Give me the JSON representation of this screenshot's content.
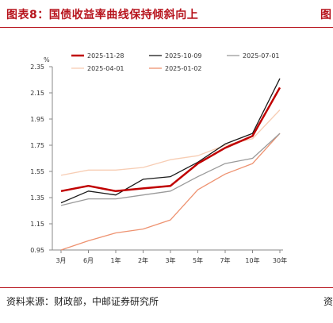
{
  "header": {
    "title": "图表8：国债收益率曲线保持倾斜向上",
    "next_title_fragment": "图"
  },
  "footer": {
    "source": "资料来源：财政部，中邮证券研究所",
    "next_source_fragment": "资"
  },
  "colors": {
    "accent": "#b7131c",
    "rule": "#b7131c"
  },
  "chart_data": {
    "type": "line",
    "y_unit": "%",
    "categories": [
      "3月",
      "6月",
      "1年",
      "2年",
      "3年",
      "5年",
      "7年",
      "10年",
      "30年"
    ],
    "ylim": [
      0.95,
      2.35
    ],
    "yticks": [
      "0.95",
      "1.15",
      "1.35",
      "1.55",
      "1.75",
      "1.95",
      "2.15",
      "2.35"
    ],
    "grid": false,
    "legend_position": "top",
    "series": [
      {
        "name": "2025-11-28",
        "color": "#c00000",
        "width": 2.5,
        "values": [
          1.4,
          1.44,
          1.4,
          1.42,
          1.44,
          1.61,
          1.73,
          1.82,
          2.19
        ]
      },
      {
        "name": "2025-10-09",
        "color": "#1a1a1a",
        "width": 1.3,
        "values": [
          1.31,
          1.4,
          1.37,
          1.49,
          1.51,
          1.62,
          1.76,
          1.84,
          2.26
        ]
      },
      {
        "name": "2025-07-01",
        "color": "#9a9a9a",
        "width": 1.3,
        "values": [
          1.29,
          1.34,
          1.34,
          1.37,
          1.4,
          1.51,
          1.61,
          1.65,
          1.84
        ]
      },
      {
        "name": "2025-04-01",
        "color": "#f7cdb4",
        "width": 1.3,
        "values": [
          1.52,
          1.56,
          1.56,
          1.58,
          1.64,
          1.67,
          1.75,
          1.8,
          2.02
        ]
      },
      {
        "name": "2025-01-02",
        "color": "#ee9270",
        "width": 1.3,
        "values": [
          0.95,
          1.02,
          1.08,
          1.11,
          1.18,
          1.41,
          1.53,
          1.61,
          1.84
        ]
      }
    ]
  }
}
